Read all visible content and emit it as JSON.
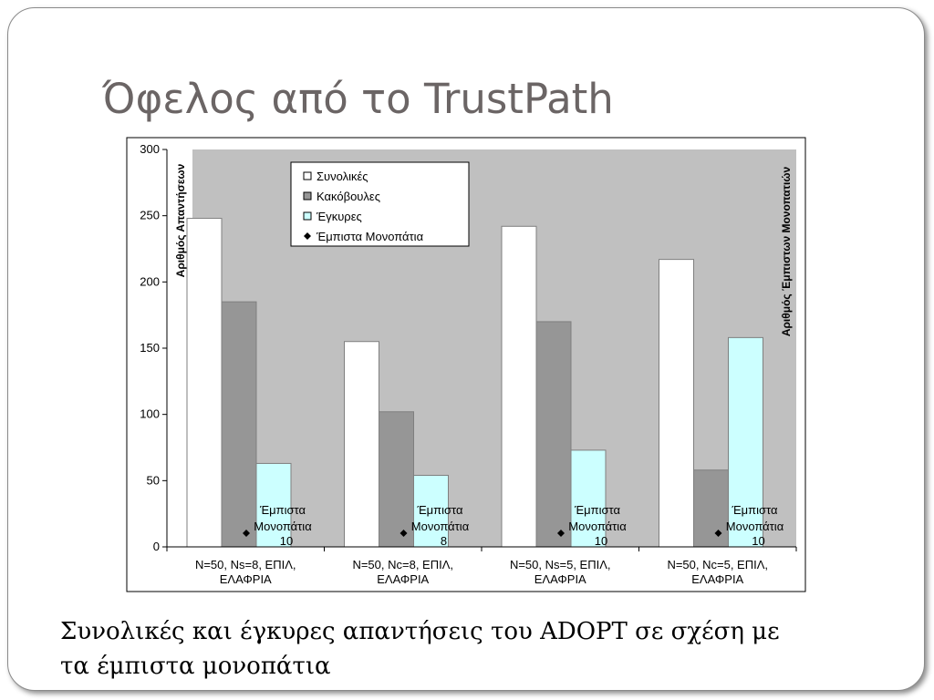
{
  "slide": {
    "title": "Όφελος από το TrustPath",
    "caption_line1": "Συνολικές και έγκυρες απαντήσεις του ADOPT σε σχέση με",
    "caption_line2": "τα έμπιστα μονοπάτια"
  },
  "chart_data": {
    "type": "bar",
    "ylabel": "Αριθμός Απαντήσεων",
    "y2label": "Αριθμός Έμπιστων Μονοπατιών",
    "ylim": [
      0,
      300
    ],
    "yticks": [
      "0",
      "50",
      "100",
      "150",
      "200",
      "250",
      "300"
    ],
    "grid": false,
    "legend_position": "top-center",
    "categories": [
      [
        "N=50, Ns=8, ΕΠΙΛ,",
        "ΕΛΑΦΡΙΑ"
      ],
      [
        "N=50, Nc=8, ΕΠΙΛ,",
        "ΕΛΑΦΡΙΑ"
      ],
      [
        "N=50, Ns=5, ΕΠΙΛ,",
        "ΕΛΑΦΡΙΑ"
      ],
      [
        "N=50, Nc=5, ΕΠΙΛ,",
        "ΕΛΑΦΡΙΑ"
      ]
    ],
    "series": [
      {
        "name": "Συνολικές",
        "values": [
          248,
          155,
          242,
          217
        ],
        "color": "#ffffff"
      },
      {
        "name": "Κακόβουλες",
        "values": [
          185,
          102,
          170,
          58
        ],
        "color": "#969696"
      },
      {
        "name": "Έγκυρες",
        "values": [
          63,
          54,
          73,
          158
        ],
        "color": "#ccffff"
      }
    ],
    "markers": {
      "name": "Έμπιστα Μονοπάτια",
      "values": [
        10,
        8,
        10,
        10
      ],
      "label_line1": "Έμπιστα",
      "label_line2": "Μονοπάτια"
    },
    "colors": {
      "plot_background": "#c0c0c0",
      "bar_stroke": "#7f7f7f",
      "marker": "#000000"
    }
  }
}
